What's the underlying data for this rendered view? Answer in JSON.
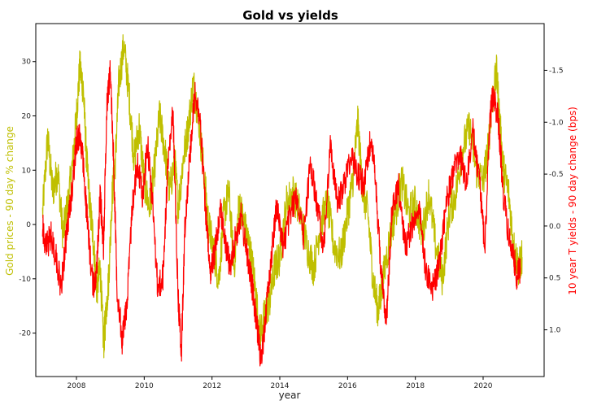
{
  "chart_data": {
    "type": "line",
    "title": "Gold vs yields",
    "xlabel": "year",
    "ylabel_left": "Gold prices - 90 day % change",
    "ylabel_right": "10 year T yields - 90 day change (bps)",
    "xlim": [
      2006.8,
      2021.8
    ],
    "ylim_left": [
      -28,
      37
    ],
    "ylim_right_inverted": [
      1.45,
      -1.95
    ],
    "x_ticks": [
      2008,
      2010,
      2012,
      2014,
      2016,
      2018,
      2020
    ],
    "y_left_ticks": [
      -20,
      -10,
      0,
      10,
      20,
      30
    ],
    "y_right_ticks": [
      1.0,
      0.5,
      0.0,
      -0.5,
      -1.0,
      -1.5
    ],
    "grid": false,
    "colors": {
      "gold": "#bfbf00",
      "yields": "#ff0000"
    },
    "series": [
      {
        "axis": "left",
        "color": "#bfbf00",
        "x": [
          2007.0,
          2007.15,
          2007.3,
          2007.45,
          2007.6,
          2007.75,
          2007.9,
          2008.0,
          2008.1,
          2008.2,
          2008.3,
          2008.4,
          2008.5,
          2008.6,
          2008.7,
          2008.8,
          2008.85,
          2008.95,
          2009.05,
          2009.15,
          2009.25,
          2009.4,
          2009.55,
          2009.7,
          2009.85,
          2010.0,
          2010.15,
          2010.3,
          2010.45,
          2010.6,
          2010.75,
          2010.9,
          2011.0,
          2011.15,
          2011.3,
          2011.45,
          2011.6,
          2011.75,
          2011.9,
          2012.05,
          2012.2,
          2012.35,
          2012.5,
          2012.65,
          2012.8,
          2012.95,
          2013.1,
          2013.25,
          2013.4,
          2013.55,
          2013.7,
          2013.85,
          2014.0,
          2014.2,
          2014.4,
          2014.6,
          2014.8,
          2015.0,
          2015.2,
          2015.4,
          2015.6,
          2015.8,
          2016.0,
          2016.15,
          2016.3,
          2016.45,
          2016.6,
          2016.75,
          2016.9,
          2017.0,
          2017.2,
          2017.4,
          2017.6,
          2017.8,
          2018.0,
          2018.2,
          2018.4,
          2018.6,
          2018.8,
          2019.0,
          2019.2,
          2019.4,
          2019.6,
          2019.8,
          2020.0,
          2020.15,
          2020.25,
          2020.4,
          2020.5,
          2020.6,
          2020.75,
          2020.9,
          2021.05,
          2021.15
        ],
        "values": [
          2,
          16,
          6,
          10,
          -2,
          4,
          12,
          20,
          29,
          25,
          12,
          3,
          -3,
          -12,
          -8,
          -22,
          -18,
          -10,
          5,
          12,
          26,
          33,
          24,
          12,
          18,
          8,
          3,
          10,
          20,
          14,
          6,
          12,
          3,
          12,
          18,
          26,
          20,
          10,
          0,
          -5,
          -10,
          2,
          6,
          -8,
          4,
          0,
          -4,
          -10,
          -20,
          -17,
          -14,
          -8,
          -6,
          4,
          6,
          2,
          -4,
          -8,
          0,
          4,
          -4,
          -6,
          2,
          8,
          19,
          6,
          2,
          -10,
          -16,
          -12,
          -4,
          2,
          8,
          2,
          4,
          -2,
          6,
          -4,
          -10,
          2,
          6,
          14,
          18,
          10,
          8,
          14,
          22,
          28,
          18,
          10,
          6,
          -4,
          -8,
          -6
        ]
      },
      {
        "axis": "right",
        "color": "#ff0000",
        "x": [
          2007.0,
          2007.1,
          2007.25,
          2007.4,
          2007.55,
          2007.7,
          2007.85,
          2008.0,
          2008.1,
          2008.2,
          2008.35,
          2008.5,
          2008.6,
          2008.7,
          2008.8,
          2008.9,
          2009.0,
          2009.1,
          2009.2,
          2009.35,
          2009.5,
          2009.65,
          2009.8,
          2009.95,
          2010.1,
          2010.25,
          2010.4,
          2010.55,
          2010.7,
          2010.85,
          2011.0,
          2011.1,
          2011.2,
          2011.35,
          2011.5,
          2011.65,
          2011.8,
          2011.95,
          2012.1,
          2012.25,
          2012.4,
          2012.55,
          2012.7,
          2012.85,
          2013.0,
          2013.15,
          2013.3,
          2013.45,
          2013.6,
          2013.75,
          2013.9,
          2014.1,
          2014.3,
          2014.5,
          2014.7,
          2014.9,
          2015.1,
          2015.3,
          2015.5,
          2015.7,
          2015.9,
          2016.1,
          2016.3,
          2016.5,
          2016.7,
          2016.85,
          2017.0,
          2017.15,
          2017.3,
          2017.5,
          2017.7,
          2017.9,
          2018.1,
          2018.3,
          2018.5,
          2018.7,
          2018.9,
          2019.1,
          2019.3,
          2019.5,
          2019.7,
          2019.9,
          2020.05,
          2020.2,
          2020.3,
          2020.45,
          2020.6,
          2020.75,
          2020.9,
          2021.0,
          2021.1
        ],
        "values": [
          0.0,
          0.2,
          0.1,
          0.3,
          0.6,
          0.1,
          -0.3,
          -0.8,
          -0.9,
          -0.6,
          0.1,
          0.6,
          0.4,
          -0.3,
          0.2,
          -1.2,
          -1.5,
          -0.6,
          0.6,
          1.1,
          0.7,
          -0.2,
          -0.6,
          -0.3,
          -0.8,
          -0.2,
          0.6,
          0.5,
          -0.6,
          -1.1,
          0.7,
          1.2,
          0.0,
          -0.7,
          -1.3,
          -1.0,
          -0.2,
          0.5,
          0.2,
          -0.2,
          0.2,
          0.4,
          0.1,
          -0.1,
          0.2,
          0.5,
          0.9,
          1.3,
          0.8,
          0.3,
          -0.2,
          0.2,
          -0.1,
          -0.3,
          0.1,
          -0.6,
          -0.2,
          0.2,
          -0.8,
          -0.2,
          -0.4,
          -0.7,
          -0.5,
          -0.4,
          -0.9,
          -0.3,
          0.5,
          0.9,
          -0.1,
          -0.4,
          0.2,
          0.0,
          -0.2,
          0.4,
          0.6,
          0.4,
          -0.2,
          -0.5,
          -0.7,
          -0.4,
          -0.9,
          -0.4,
          0.2,
          -1.0,
          -1.3,
          -1.0,
          -0.3,
          0.1,
          0.3,
          0.5,
          0.4
        ]
      }
    ]
  }
}
